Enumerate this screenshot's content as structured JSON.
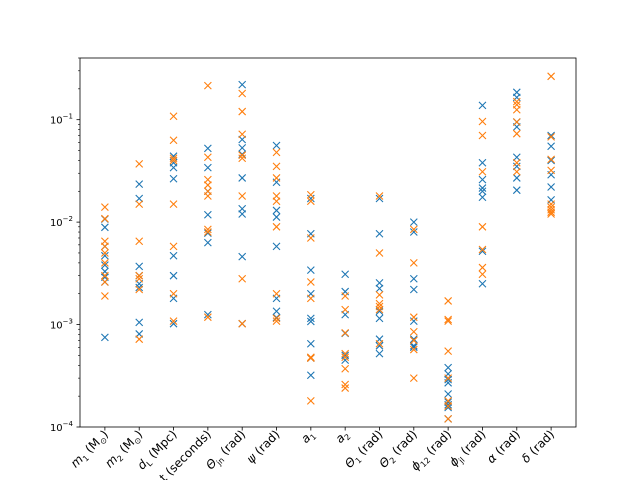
{
  "chart_data": {
    "type": "scatter",
    "marker": "x",
    "yscale": "log",
    "ylim": [
      0.0001,
      0.4
    ],
    "ytick_labels": [
      {
        "value": 0.0001,
        "base": "10",
        "exp": "−4"
      },
      {
        "value": 0.001,
        "base": "10",
        "exp": "−3"
      },
      {
        "value": 0.01,
        "base": "10",
        "exp": "−2"
      },
      {
        "value": 0.1,
        "base": "10",
        "exp": "−1"
      }
    ],
    "categories": [
      {
        "base": "m",
        "sub": "1",
        "suffix": " (M",
        "sub2": "⊙",
        "end": ")"
      },
      {
        "base": "m",
        "sub": "2",
        "suffix": " (M",
        "sub2": "⊙",
        "end": ")"
      },
      {
        "base": "d",
        "sub": "L",
        "suffix": " (Mpc)",
        "sub2": "",
        "end": ""
      },
      {
        "base": "",
        "sub": "",
        "suffix": "t (seconds)",
        "sub2": "",
        "end": ""
      },
      {
        "base": "Θ",
        "sub": "jn",
        "suffix": " (rad)",
        "sub2": "",
        "end": ""
      },
      {
        "base": "ψ",
        "sub": "",
        "suffix": " (rad)",
        "sub2": "",
        "end": ""
      },
      {
        "base": "a",
        "sub": "1",
        "suffix": "",
        "sub2": "",
        "end": ""
      },
      {
        "base": "a",
        "sub": "2",
        "suffix": "",
        "sub2": "",
        "end": ""
      },
      {
        "base": "Θ",
        "sub": "1",
        "suffix": " (rad)",
        "sub2": "",
        "end": ""
      },
      {
        "base": "Θ",
        "sub": "2",
        "suffix": " (rad)",
        "sub2": "",
        "end": ""
      },
      {
        "base": "ϕ",
        "sub": "12",
        "suffix": " (rad)",
        "sub2": "",
        "end": ""
      },
      {
        "base": "ϕ",
        "sub": "jl",
        "suffix": " (rad)",
        "sub2": "",
        "end": ""
      },
      {
        "base": "α",
        "sub": "",
        "suffix": " (rad)",
        "sub2": "",
        "end": ""
      },
      {
        "base": "δ",
        "sub": "",
        "suffix": " (rad)",
        "sub2": "",
        "end": ""
      }
    ],
    "series": [
      {
        "color": "#1f77b4",
        "values": [
          [
            0.0107,
            0.0089,
            0.0058,
            0.0047,
            0.0038,
            0.0033,
            0.0029,
            0.0026,
            0.00075
          ],
          [
            0.0235,
            0.017,
            0.0037,
            0.003,
            0.0025,
            0.0023,
            0.00105,
            0.00081
          ],
          [
            0.044,
            0.038,
            0.034,
            0.0265,
            0.0047,
            0.003,
            0.0018,
            0.00102
          ],
          [
            0.0525,
            0.034,
            0.02,
            0.0118,
            0.0078,
            0.0063,
            0.00125
          ],
          [
            0.22,
            0.064,
            0.053,
            0.046,
            0.027,
            0.0135,
            0.012,
            0.0046,
            0.00102
          ],
          [
            0.056,
            0.0245,
            0.013,
            0.0112,
            0.0058,
            0.0018,
            0.00135,
            0.00117
          ],
          [
            0.017,
            0.0077,
            0.0034,
            0.002,
            0.00115,
            0.00107,
            0.00065,
            0.00047,
            0.00032
          ],
          [
            0.0031,
            0.0021,
            0.00125,
            0.00082,
            0.0005,
            0.00045
          ],
          [
            0.017,
            0.0077,
            0.00255,
            0.00225,
            0.00135,
            0.00115,
            0.00072,
            0.00062,
            0.00052
          ],
          [
            0.01,
            0.008,
            0.0028,
            0.0022,
            0.00108,
            0.00072,
            0.00062,
            0.0006
          ],
          [
            0.00038,
            0.00033,
            0.00029,
            0.00027,
            0.00021,
            0.000175,
            0.000165,
            0.000155,
            0.00012
          ],
          [
            0.138,
            0.038,
            0.026,
            0.0215,
            0.02,
            0.0175,
            0.0052,
            0.0025
          ],
          [
            0.185,
            0.165,
            0.095,
            0.085,
            0.043,
            0.035,
            0.027,
            0.0205
          ],
          [
            0.07,
            0.055,
            0.04,
            0.029,
            0.022,
            0.0165
          ]
        ]
      },
      {
        "color": "#ff7f0e",
        "values": [
          [
            0.014,
            0.0108,
            0.0065,
            0.0058,
            0.005,
            0.004,
            0.003,
            0.0026,
            0.0019
          ],
          [
            0.037,
            0.015,
            0.0065,
            0.003,
            0.0028,
            0.0022,
            0.00072
          ],
          [
            0.108,
            0.063,
            0.042,
            0.04,
            0.015,
            0.0058,
            0.002,
            0.00108
          ],
          [
            0.215,
            0.043,
            0.026,
            0.023,
            0.02,
            0.018,
            0.0085,
            0.008,
            0.00118
          ],
          [
            0.18,
            0.12,
            0.072,
            0.045,
            0.042,
            0.018,
            0.0028,
            0.00102
          ],
          [
            0.048,
            0.035,
            0.027,
            0.018,
            0.016,
            0.009,
            0.002,
            0.00115,
            0.00108
          ],
          [
            0.0185,
            0.016,
            0.007,
            0.0026,
            0.0018,
            0.00048,
            0.00047,
            0.00018
          ],
          [
            0.0019,
            0.0014,
            0.00083,
            0.00052,
            0.00048,
            0.00037,
            0.00026,
            0.00024
          ],
          [
            0.018,
            0.005,
            0.00195,
            0.0016,
            0.0015,
            0.0014,
            0.00065
          ],
          [
            0.0085,
            0.004,
            0.00118,
            0.00085,
            0.0007,
            0.00057,
            0.0003
          ],
          [
            0.0017,
            0.00112,
            0.00108,
            0.00055,
            0.0003,
            0.00018,
            0.00016,
            0.00012
          ],
          [
            0.096,
            0.07,
            0.031,
            0.009,
            0.0054,
            0.0036,
            0.0031
          ],
          [
            0.15,
            0.14,
            0.125,
            0.095,
            0.073,
            0.038,
            0.031
          ],
          [
            0.265,
            0.068,
            0.041,
            0.032,
            0.015,
            0.014,
            0.0132,
            0.0125,
            0.012
          ]
        ]
      }
    ]
  }
}
